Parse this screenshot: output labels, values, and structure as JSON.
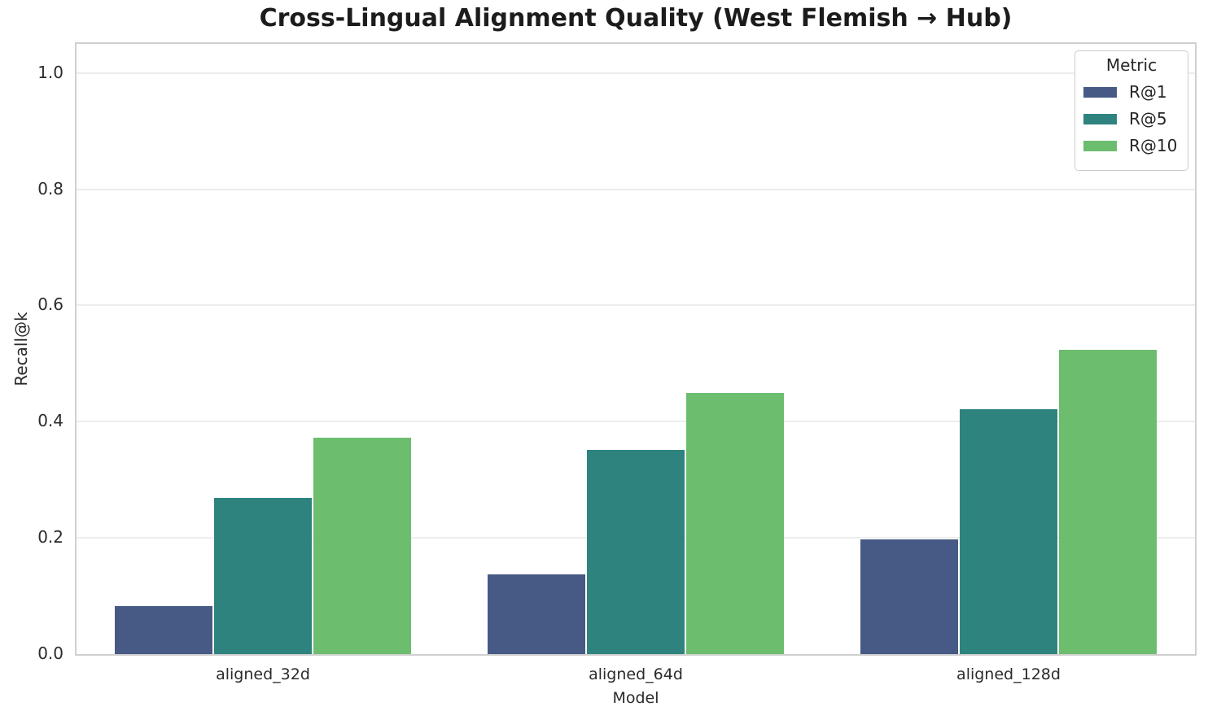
{
  "chart_data": {
    "type": "bar",
    "title": "Cross-Lingual Alignment Quality (West Flemish → Hub)",
    "xlabel": "Model",
    "ylabel": "Recall@k",
    "legend_title": "Metric",
    "legend_position": "upper right",
    "grid": true,
    "categories": [
      "aligned_32d",
      "aligned_64d",
      "aligned_128d"
    ],
    "series": [
      {
        "name": "R@1",
        "color": "#475a85",
        "values": [
          0.082,
          0.137,
          0.198
        ]
      },
      {
        "name": "R@5",
        "color": "#2e837e",
        "values": [
          0.269,
          0.352,
          0.422
        ]
      },
      {
        "name": "R@10",
        "color": "#6cbd6e",
        "values": [
          0.372,
          0.449,
          0.524
        ]
      }
    ],
    "ylim": [
      0,
      1.05
    ],
    "yticks": [
      "0.0",
      "0.2",
      "0.4",
      "0.6",
      "0.8",
      "1.0"
    ],
    "colors": {
      "text": "#262626",
      "gridline": "#ededed",
      "spine": "#d0d0d0",
      "background": "#ffffff"
    }
  }
}
